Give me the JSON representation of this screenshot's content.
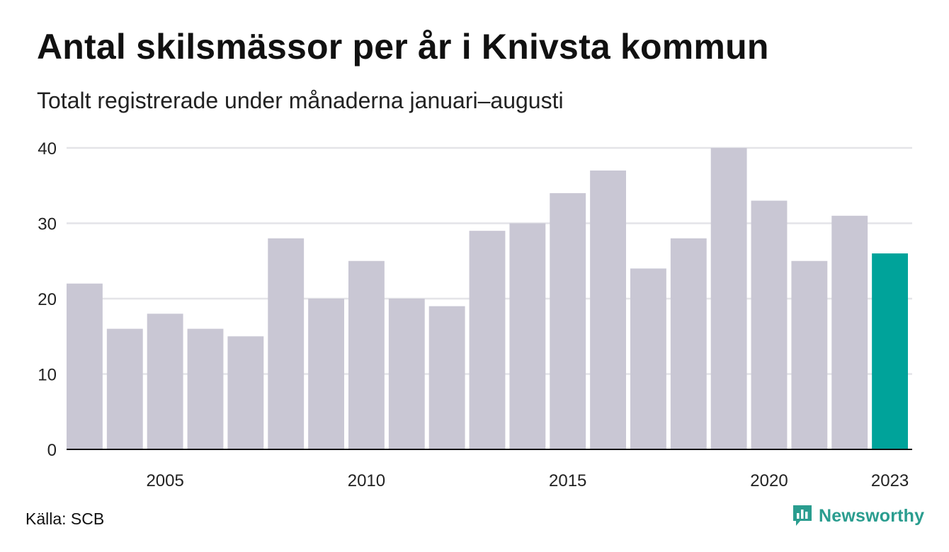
{
  "title": "Antal skilsmässor per år i Knivsta kommun",
  "subtitle": "Totalt registrerade under månaderna januari–augusti",
  "source": "Källa: SCB",
  "brand": {
    "name": "Newsworthy",
    "icon": "newsworthy-logo-icon",
    "color": "#2a9d8f"
  },
  "colors": {
    "bar": "#c9c7d4",
    "highlight": "#00a39a",
    "grid": "#e4e4e8",
    "axis": "#111111"
  },
  "chart_data": {
    "type": "bar",
    "categories": [
      "2003",
      "2004",
      "2005",
      "2006",
      "2007",
      "2008",
      "2009",
      "2010",
      "2011",
      "2012",
      "2013",
      "2014",
      "2015",
      "2016",
      "2017",
      "2018",
      "2019",
      "2020",
      "2021",
      "2022",
      "2023"
    ],
    "values": [
      22,
      16,
      18,
      16,
      15,
      28,
      20,
      25,
      20,
      19,
      29,
      30,
      34,
      37,
      24,
      28,
      40,
      33,
      25,
      31,
      26
    ],
    "highlight": "2023",
    "x_tick_labels": [
      "2005",
      "2010",
      "2015",
      "2020",
      "2023"
    ],
    "y_ticks": [
      0,
      10,
      20,
      30,
      40
    ],
    "ylim": [
      0,
      40
    ],
    "xlabel": "",
    "ylabel": "",
    "grid": true
  }
}
